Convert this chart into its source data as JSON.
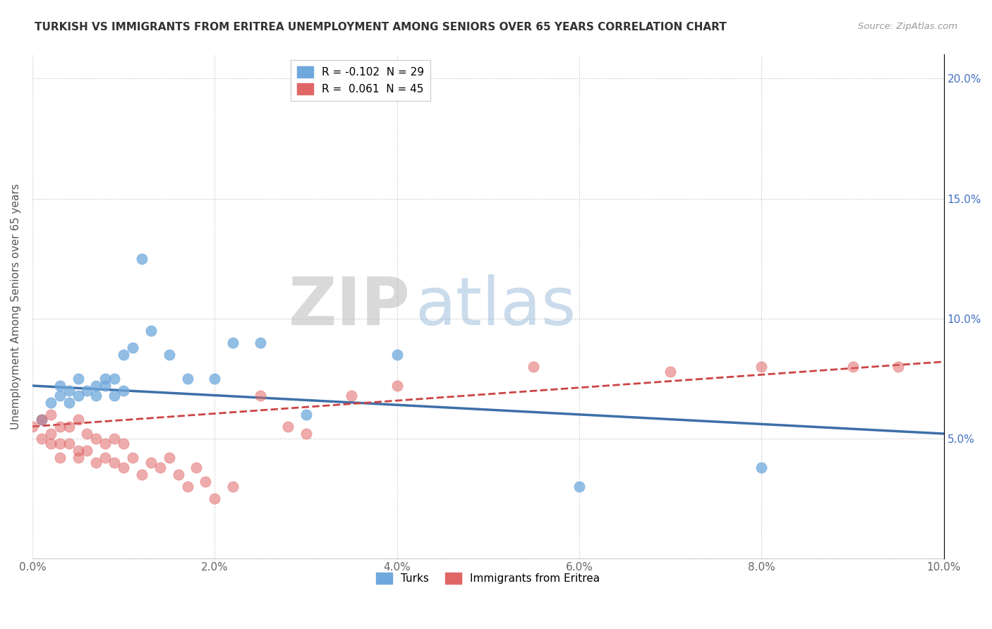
{
  "title": "TURKISH VS IMMIGRANTS FROM ERITREA UNEMPLOYMENT AMONG SENIORS OVER 65 YEARS CORRELATION CHART",
  "source": "Source: ZipAtlas.com",
  "ylabel": "Unemployment Among Seniors over 65 years",
  "xlim": [
    0.0,
    0.1
  ],
  "ylim": [
    0.0,
    0.21
  ],
  "xticks": [
    0.0,
    0.02,
    0.04,
    0.06,
    0.08,
    0.1
  ],
  "yticks": [
    0.0,
    0.05,
    0.1,
    0.15,
    0.2
  ],
  "ytick_labels": [
    "",
    "5.0%",
    "10.0%",
    "15.0%",
    "20.0%"
  ],
  "xtick_labels": [
    "0.0%",
    "2.0%",
    "4.0%",
    "6.0%",
    "8.0%",
    "10.0%"
  ],
  "turks_color": "#6fa8dc",
  "eritrea_color": "#e06666",
  "turks_line_color": "#3d6fa8",
  "eritrea_line_color": "#cc4444",
  "turks_R": -0.102,
  "turks_N": 29,
  "eritrea_R": 0.061,
  "eritrea_N": 45,
  "legend_turks": "Turks",
  "legend_eritrea": "Immigrants from Eritrea",
  "turks_x": [
    0.001,
    0.002,
    0.003,
    0.003,
    0.004,
    0.004,
    0.005,
    0.005,
    0.006,
    0.007,
    0.007,
    0.008,
    0.008,
    0.009,
    0.009,
    0.01,
    0.01,
    0.011,
    0.012,
    0.013,
    0.015,
    0.017,
    0.02,
    0.022,
    0.025,
    0.03,
    0.04,
    0.06,
    0.08
  ],
  "turks_y": [
    0.058,
    0.065,
    0.068,
    0.072,
    0.065,
    0.07,
    0.068,
    0.075,
    0.07,
    0.072,
    0.068,
    0.075,
    0.072,
    0.075,
    0.068,
    0.085,
    0.07,
    0.088,
    0.125,
    0.095,
    0.085,
    0.075,
    0.075,
    0.09,
    0.09,
    0.06,
    0.085,
    0.03,
    0.038
  ],
  "eritrea_x": [
    0.0,
    0.001,
    0.001,
    0.002,
    0.002,
    0.002,
    0.003,
    0.003,
    0.003,
    0.004,
    0.004,
    0.005,
    0.005,
    0.005,
    0.006,
    0.006,
    0.007,
    0.007,
    0.008,
    0.008,
    0.009,
    0.009,
    0.01,
    0.01,
    0.011,
    0.012,
    0.013,
    0.014,
    0.015,
    0.016,
    0.017,
    0.018,
    0.019,
    0.02,
    0.022,
    0.025,
    0.028,
    0.03,
    0.035,
    0.04,
    0.055,
    0.07,
    0.08,
    0.09,
    0.095
  ],
  "eritrea_y": [
    0.055,
    0.058,
    0.05,
    0.06,
    0.052,
    0.048,
    0.055,
    0.048,
    0.042,
    0.055,
    0.048,
    0.058,
    0.045,
    0.042,
    0.052,
    0.045,
    0.05,
    0.04,
    0.048,
    0.042,
    0.05,
    0.04,
    0.048,
    0.038,
    0.042,
    0.035,
    0.04,
    0.038,
    0.042,
    0.035,
    0.03,
    0.038,
    0.032,
    0.025,
    0.03,
    0.068,
    0.055,
    0.052,
    0.068,
    0.072,
    0.08,
    0.078,
    0.08,
    0.08,
    0.08
  ],
  "watermark_zip": "ZIP",
  "watermark_atlas": "atlas"
}
